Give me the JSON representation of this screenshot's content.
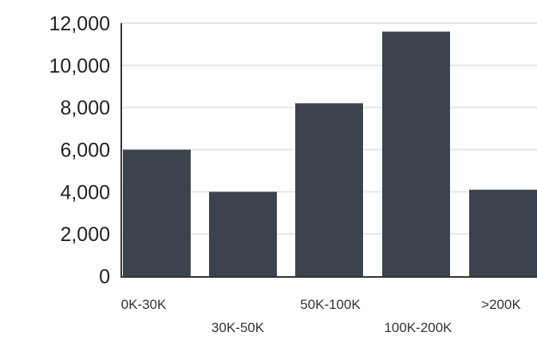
{
  "chart_data": {
    "type": "bar",
    "categories": [
      "0K-30K",
      "30K-50K",
      "50K-100K",
      "100K-200K",
      ">200K"
    ],
    "values": [
      6000,
      4000,
      8200,
      11600,
      4100
    ],
    "ylim": [
      0,
      12000
    ],
    "yticks": [
      "0",
      "2,000",
      "4,000",
      "6,000",
      "8,000",
      "10,000",
      "12,000"
    ],
    "grid": true,
    "title": "",
    "xlabel": "",
    "ylabel": "",
    "bar_color": "#3d434d",
    "grid_color": "#e6e6e6",
    "axis_color": "#333333",
    "tick_label_color": "#222222",
    "category_label_color": "#333333"
  }
}
